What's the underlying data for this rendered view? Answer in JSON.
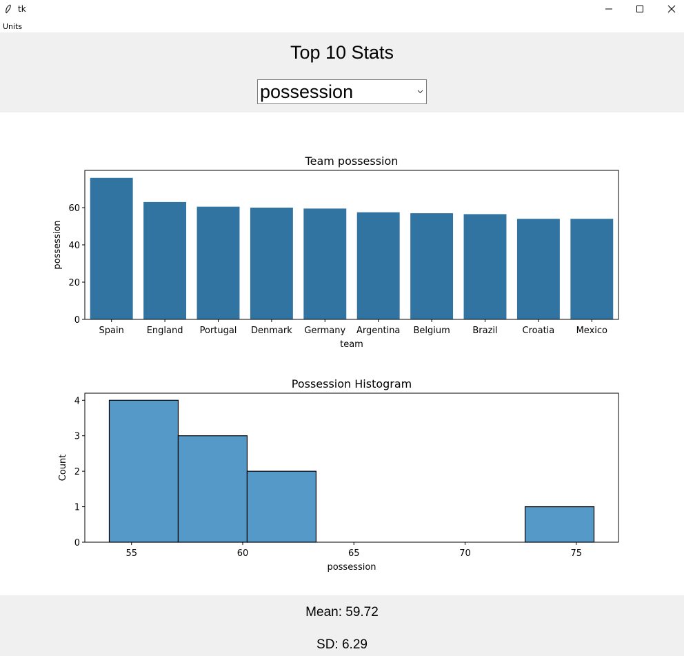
{
  "window": {
    "title": "tk"
  },
  "menubar": {
    "items": [
      "Units"
    ]
  },
  "header": {
    "title": "Top 10 Stats"
  },
  "selector": {
    "value": "possession"
  },
  "chart_data": [
    {
      "type": "bar",
      "title": "Team possession",
      "xlabel": "team",
      "ylabel": "possession",
      "categories": [
        "Spain",
        "England",
        "Portugal",
        "Denmark",
        "Germany",
        "Argentina",
        "Belgium",
        "Brazil",
        "Croatia",
        "Mexico"
      ],
      "values": [
        76,
        63,
        60.5,
        60,
        59.5,
        57.5,
        57,
        56.5,
        54,
        54
      ],
      "ylim": [
        0,
        80
      ],
      "yticks": [
        0,
        20,
        40,
        60
      ],
      "color": "#3274a1"
    },
    {
      "type": "bar",
      "subtype": "histogram",
      "title": "Possession Histogram",
      "xlabel": "possession",
      "ylabel": "Count",
      "bins": [
        {
          "start": 54.0,
          "end": 57.1,
          "count": 4
        },
        {
          "start": 57.1,
          "end": 60.2,
          "count": 3
        },
        {
          "start": 60.2,
          "end": 63.3,
          "count": 2
        },
        {
          "start": 63.3,
          "end": 66.5,
          "count": 0
        },
        {
          "start": 66.5,
          "end": 69.6,
          "count": 0
        },
        {
          "start": 69.6,
          "end": 72.7,
          "count": 0
        },
        {
          "start": 72.7,
          "end": 75.8,
          "count": 1
        }
      ],
      "xlim": [
        52.9,
        76.9
      ],
      "ylim": [
        0,
        4.2
      ],
      "xticks": [
        55,
        60,
        65,
        70,
        75
      ],
      "yticks": [
        0,
        1,
        2,
        3,
        4
      ],
      "color": "#5499c7"
    }
  ],
  "footer": {
    "mean": "Mean: 59.72",
    "sd": "SD: 6.29"
  }
}
